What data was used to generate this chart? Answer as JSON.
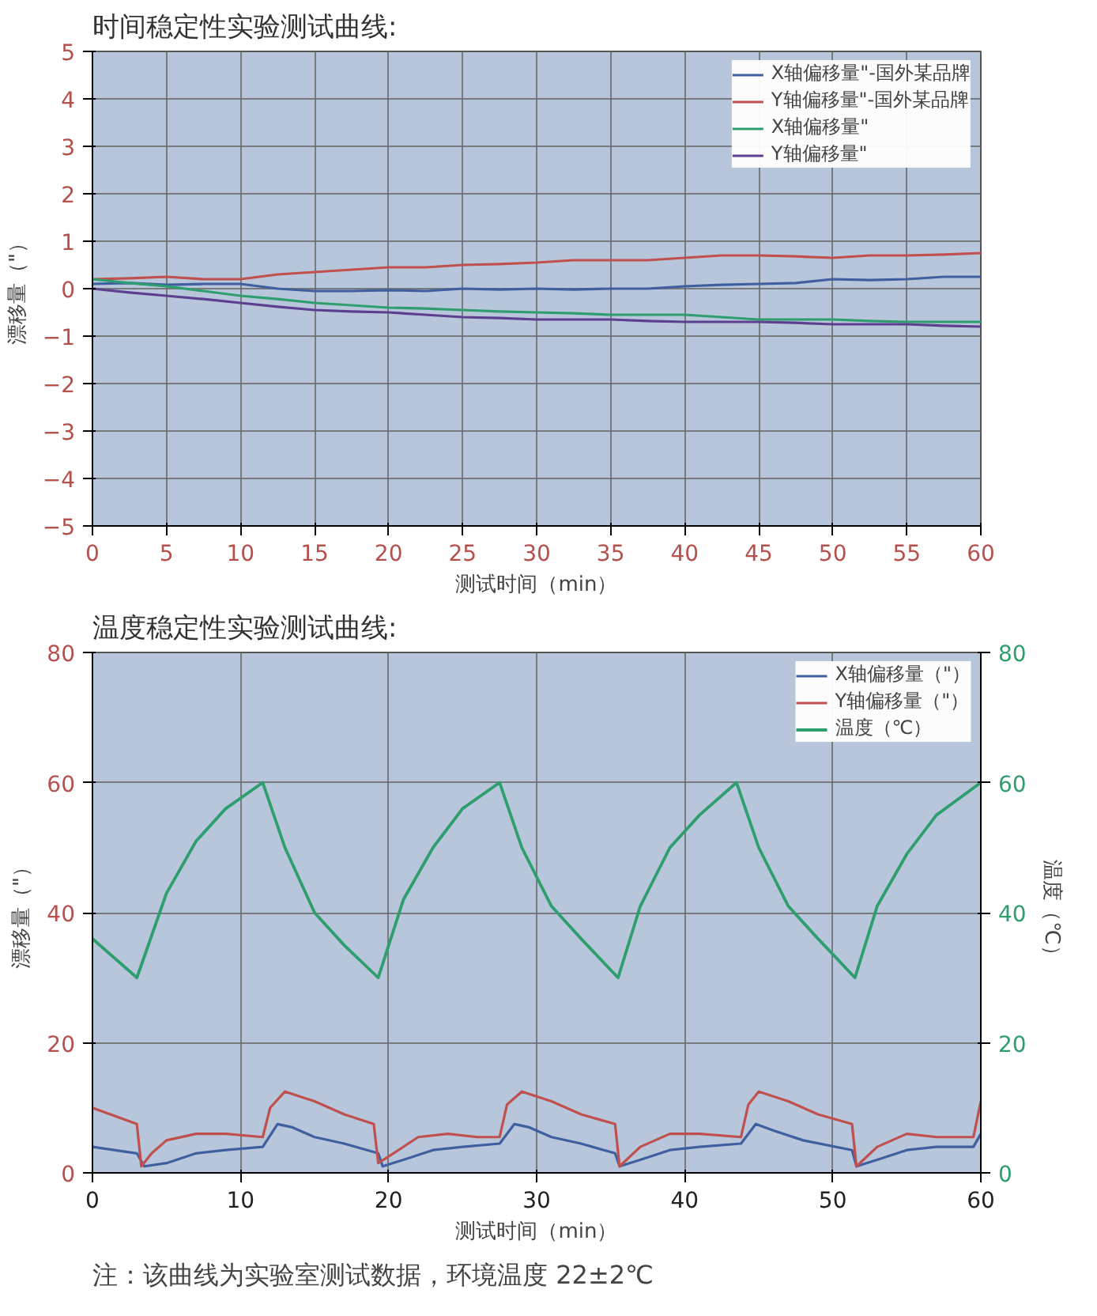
{
  "chart_data": [
    {
      "type": "line",
      "title": "时间稳定性实验测试曲线:",
      "xlabel": "测试时间（min）",
      "ylabel": "漂移量（\"）",
      "xlim": [
        0,
        60
      ],
      "ylim": [
        -5,
        5
      ],
      "xticks": [
        0,
        5,
        10,
        15,
        20,
        25,
        30,
        35,
        40,
        45,
        50,
        55,
        60
      ],
      "yticks": [
        -5,
        -4,
        -3,
        -2,
        -1,
        0,
        1,
        2,
        3,
        4,
        5
      ],
      "grid": true,
      "legend": "top right",
      "x": [
        0,
        2.5,
        5,
        7.5,
        10,
        12.5,
        15,
        17.5,
        20,
        22.5,
        25,
        27.5,
        30,
        32.5,
        35,
        37.5,
        40,
        42.5,
        45,
        47.5,
        50,
        52.5,
        55,
        57.5,
        60
      ],
      "series": [
        {
          "name": "X轴偏移量\"-国外某品牌",
          "color": "#3f5f9f",
          "values": [
            0.1,
            0.12,
            0.08,
            0.1,
            0.1,
            0.0,
            -0.05,
            -0.05,
            -0.03,
            -0.05,
            0.0,
            -0.02,
            0.0,
            -0.02,
            0.0,
            0.0,
            0.05,
            0.08,
            0.1,
            0.12,
            0.2,
            0.18,
            0.2,
            0.25,
            0.25
          ]
        },
        {
          "name": "Y轴偏移量\"-国外某品牌",
          "color": "#c0504d",
          "values": [
            0.2,
            0.22,
            0.25,
            0.2,
            0.2,
            0.3,
            0.35,
            0.4,
            0.45,
            0.45,
            0.5,
            0.52,
            0.55,
            0.6,
            0.6,
            0.6,
            0.65,
            0.7,
            0.7,
            0.68,
            0.65,
            0.7,
            0.7,
            0.72,
            0.75
          ]
        },
        {
          "name": "X轴偏移量\"",
          "color": "#2e9e6e",
          "values": [
            0.2,
            0.12,
            0.05,
            -0.05,
            -0.15,
            -0.22,
            -0.3,
            -0.35,
            -0.4,
            -0.42,
            -0.45,
            -0.48,
            -0.5,
            -0.52,
            -0.55,
            -0.55,
            -0.55,
            -0.6,
            -0.65,
            -0.65,
            -0.65,
            -0.68,
            -0.7,
            -0.7,
            -0.7
          ]
        },
        {
          "name": "Y轴偏移量\"",
          "color": "#5c3f8f",
          "values": [
            0.0,
            -0.08,
            -0.15,
            -0.22,
            -0.3,
            -0.38,
            -0.45,
            -0.48,
            -0.5,
            -0.55,
            -0.6,
            -0.62,
            -0.65,
            -0.65,
            -0.65,
            -0.68,
            -0.7,
            -0.7,
            -0.7,
            -0.72,
            -0.75,
            -0.75,
            -0.75,
            -0.78,
            -0.8
          ]
        }
      ]
    },
    {
      "type": "line",
      "title": "温度稳定性实验测试曲线:",
      "xlabel": "测试时间（min）",
      "ylabel": "漂移量（\"）",
      "y2label": "温度（℃）",
      "xlim": [
        0,
        60
      ],
      "ylim": [
        0,
        80
      ],
      "y2lim": [
        0,
        80
      ],
      "xticks": [
        0,
        10,
        20,
        30,
        40,
        50,
        60
      ],
      "yticks": [
        0,
        20,
        40,
        60,
        80
      ],
      "y2ticks": [
        0,
        20,
        40,
        60,
        80
      ],
      "grid": true,
      "legend": "top right",
      "annotations": [
        "注：该曲线为实验室测试数据，环境温度 22±2℃"
      ],
      "series": [
        {
          "name": "X轴偏移量（\"）",
          "color": "#3f5f9f",
          "x": [
            0,
            3,
            3.5,
            5,
            7,
            9,
            11.5,
            12.5,
            13.5,
            15,
            17,
            19.3,
            19.6,
            21,
            23,
            25,
            27.5,
            28.5,
            29.5,
            31,
            33,
            35.3,
            35.6,
            37,
            39,
            41,
            43.8,
            44.8,
            46,
            48,
            51.3,
            51.6,
            53,
            55,
            57,
            59.5,
            60
          ],
          "values": [
            4,
            3,
            1,
            1.5,
            3,
            3.5,
            4,
            7.5,
            7,
            5.5,
            4.5,
            3,
            1,
            2,
            3.5,
            4,
            4.5,
            7.5,
            7,
            5.5,
            4.5,
            3,
            1,
            2,
            3.5,
            4,
            4.5,
            7.5,
            6.5,
            5,
            3.5,
            1,
            2,
            3.5,
            4,
            4,
            6
          ]
        },
        {
          "name": "Y轴偏移量（\"）",
          "color": "#c0504d",
          "x": [
            0,
            3,
            3.3,
            4,
            5,
            7,
            9,
            11.5,
            12,
            13,
            15,
            17,
            19,
            19.3,
            20,
            22,
            24,
            26,
            27.5,
            28,
            29,
            31,
            33,
            35.3,
            35.6,
            37,
            39,
            41,
            43.8,
            44.3,
            45,
            47,
            49,
            51.3,
            51.6,
            53,
            55,
            57,
            59.5,
            60
          ],
          "values": [
            10,
            7.5,
            1,
            3,
            5,
            6,
            6,
            5.5,
            10,
            12.5,
            11,
            9,
            7.5,
            1.5,
            2.5,
            5.5,
            6,
            5.5,
            5.5,
            10.5,
            12.5,
            11,
            9,
            7.5,
            1,
            4,
            6,
            6,
            5.5,
            10.5,
            12.5,
            11,
            9,
            7.5,
            1,
            4,
            6,
            5.5,
            5.5,
            11
          ]
        },
        {
          "name": "温度（℃）",
          "color": "#2e9e6e",
          "axis": "y2",
          "x": [
            0,
            3,
            5,
            7,
            9,
            11.5,
            13,
            15,
            17,
            19.3,
            21,
            23,
            25,
            27.5,
            29,
            31,
            33,
            35.5,
            37,
            39,
            41,
            43.5,
            45,
            47,
            49,
            51.5,
            53,
            55,
            57,
            60
          ],
          "values": [
            36,
            30,
            43,
            51,
            56,
            60,
            50,
            40,
            35,
            30,
            42,
            50,
            56,
            60,
            50,
            41,
            36,
            30,
            41,
            50,
            55,
            60,
            50,
            41,
            36,
            30,
            41,
            49,
            55,
            60
          ]
        }
      ]
    }
  ]
}
